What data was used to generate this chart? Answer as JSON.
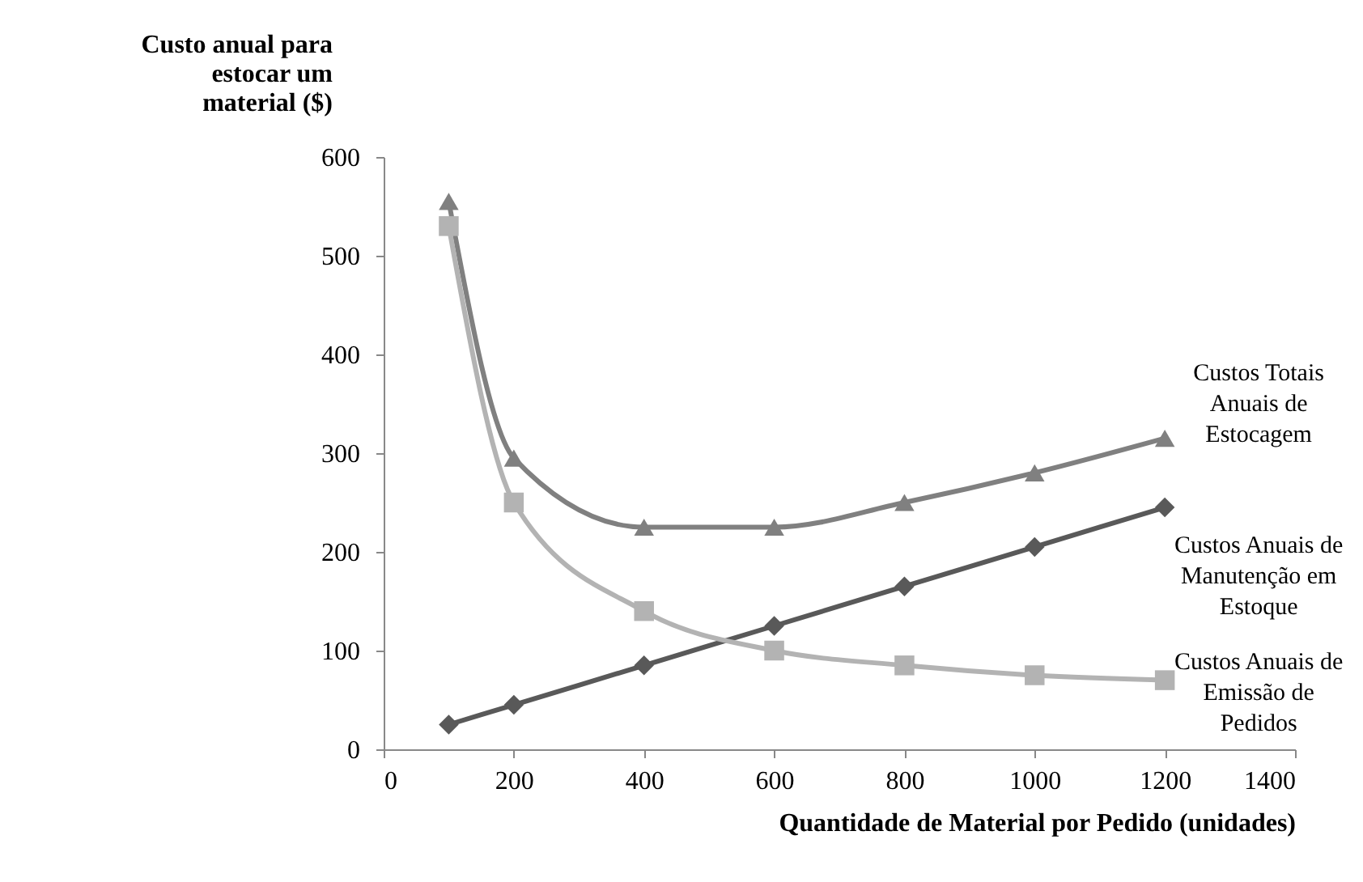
{
  "chart_data": {
    "type": "line",
    "ylabel": "Custo anual para estocar um material ($)",
    "xlabel": "Quantidade de Material por Pedido (unidades)",
    "x": [
      100,
      200,
      400,
      600,
      800,
      1000,
      1200
    ],
    "series": [
      {
        "name": "Custos Totais Anuais de Estocagem",
        "color": "#808080",
        "marker": "triangle",
        "values": [
          555,
          295,
          225,
          225,
          250,
          280,
          315
        ]
      },
      {
        "name": "Custos Anuais de Manutenção em Estoque",
        "color": "#595959",
        "marker": "diamond",
        "values": [
          25,
          45,
          85,
          125,
          165,
          205,
          245
        ]
      },
      {
        "name": "Custos Anuais de Emissão de Pedidos",
        "color": "#b3b3b3",
        "marker": "square",
        "values": [
          530,
          250,
          140,
          100,
          85,
          75,
          70
        ]
      }
    ],
    "xlim": [
      0,
      1400
    ],
    "xticks": [
      0,
      200,
      400,
      600,
      800,
      1000,
      1200,
      1400
    ],
    "ylim": [
      0,
      600
    ],
    "yticks": [
      0,
      100,
      200,
      300,
      400,
      500,
      600
    ],
    "grid": false
  }
}
